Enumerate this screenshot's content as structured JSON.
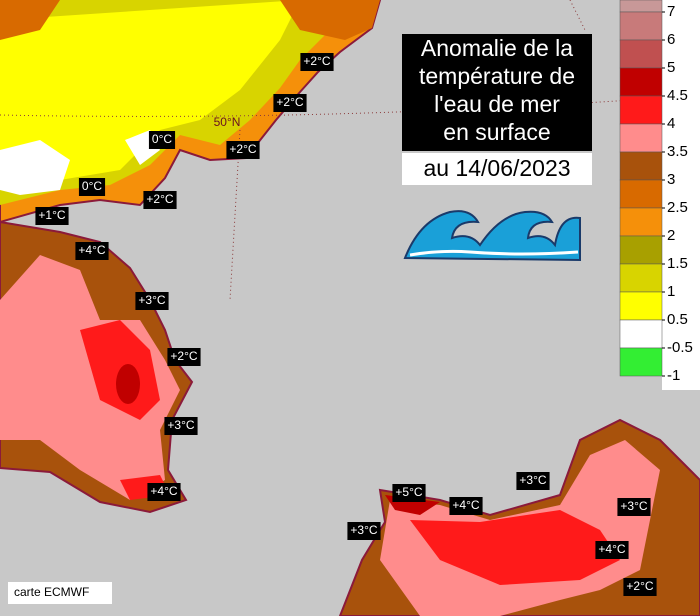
{
  "title": {
    "lines": [
      "Anomalie de la",
      "température de",
      "l'eau de mer",
      "en surface"
    ],
    "date": "au 14/06/2023"
  },
  "legend": {
    "ticks": [
      7,
      6,
      5,
      4.5,
      4,
      3.5,
      3,
      2.5,
      2,
      1.5,
      1,
      0.5,
      -0.5,
      -1
    ],
    "colors": [
      "#c89898",
      "#c87a7a",
      "#c05050",
      "#c00000",
      "#ff1a1a",
      "#ff8c8c",
      "#a8520c",
      "#d86a00",
      "#f5900a",
      "#a8a000",
      "#d8d400",
      "#ffff00",
      "#ffffff",
      "#33ee33"
    ]
  },
  "map": {
    "labels": [
      "+2°C",
      "+2°C",
      "0°C",
      "+2°C",
      "0°C",
      "+2°C",
      "+1°C",
      "+4°C",
      "+3°C",
      "+2°C",
      "+3°C",
      "+4°C",
      "+5°C",
      "+4°C",
      "+3°C",
      "+3°C",
      "+3°C",
      "+4°C",
      "+2°C"
    ],
    "grid_label": "50°N",
    "credit": "carte ECMWF"
  }
}
